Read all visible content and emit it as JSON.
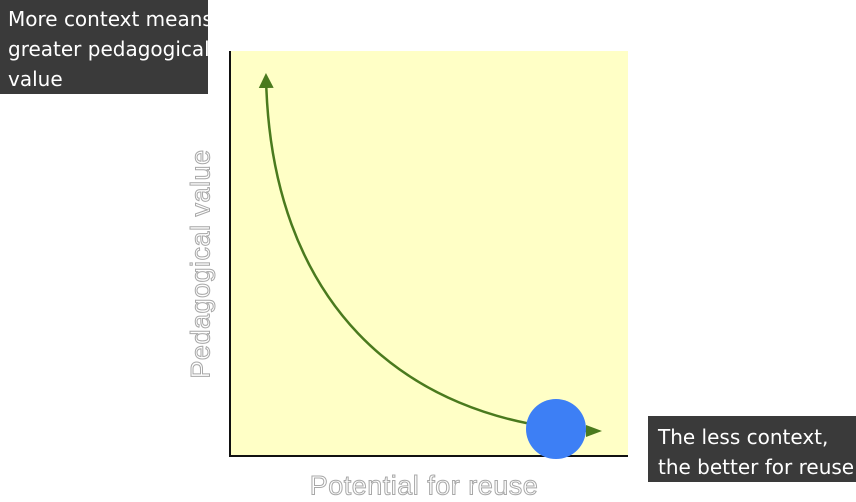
{
  "callouts": {
    "top_left": {
      "lines": [
        "More context means",
        "greater pedagogical",
        "value"
      ]
    },
    "bottom_right": {
      "lines": [
        "The less context,",
        "the better for reuse"
      ]
    }
  },
  "axes": {
    "y_label": "Pedagogical value",
    "x_label": "Potential for reuse"
  },
  "colors": {
    "plot_background": "#ffffc6",
    "curve": "#4a7a1e",
    "marker": "#3d7ff5",
    "callout_background": "#3a3a3a",
    "axis_line": "#111111"
  },
  "marker": {
    "shape": "circle"
  }
}
